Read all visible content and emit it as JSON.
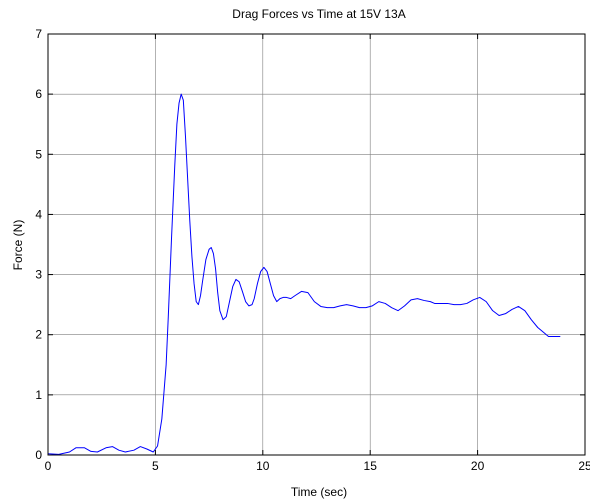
{
  "chart_data": {
    "type": "line",
    "title": "Drag Forces vs Time at 15V 13A",
    "xlabel": "Time (sec)",
    "ylabel": "Force (N)",
    "xlim": [
      0,
      25
    ],
    "ylim": [
      0,
      7
    ],
    "xticks": [
      0,
      5,
      10,
      15,
      20,
      25
    ],
    "yticks": [
      0,
      1,
      2,
      3,
      4,
      5,
      6,
      7
    ],
    "grid": true,
    "box": true,
    "colors": {
      "line": "#0000ff",
      "grid": "#7f7f7f",
      "axes": "#000000",
      "background": "#ffffff"
    },
    "series": [
      {
        "x": [
          0,
          0.5,
          1.0,
          1.3,
          1.7,
          2.0,
          2.3,
          2.7,
          3.0,
          3.3,
          3.6,
          4.0,
          4.3,
          4.6,
          4.9,
          5.1,
          5.3,
          5.5,
          5.6,
          5.75,
          5.9,
          6.0,
          6.1,
          6.2,
          6.3,
          6.4,
          6.5,
          6.6,
          6.7,
          6.8,
          6.9,
          7.0,
          7.1,
          7.2,
          7.35,
          7.5,
          7.6,
          7.7,
          7.8,
          7.9,
          8.0,
          8.15,
          8.3,
          8.45,
          8.6,
          8.75,
          8.9,
          9.05,
          9.2,
          9.35,
          9.5,
          9.6,
          9.75,
          9.9,
          10.05,
          10.2,
          10.35,
          10.5,
          10.65,
          10.8,
          10.95,
          11.1,
          11.3,
          11.5,
          11.8,
          12.1,
          12.4,
          12.7,
          13.0,
          13.3,
          13.6,
          13.9,
          14.2,
          14.5,
          14.8,
          15.1,
          15.4,
          15.7,
          16.0,
          16.3,
          16.6,
          16.9,
          17.2,
          17.5,
          17.8,
          18.0,
          18.3,
          18.6,
          18.9,
          19.2,
          19.5,
          19.8,
          20.1,
          20.4,
          20.7,
          21.0,
          21.3,
          21.6,
          21.9,
          22.2,
          22.5,
          22.8,
          23.1,
          23.3,
          23.5,
          23.7,
          23.85
        ],
        "y": [
          0.02,
          0.01,
          0.05,
          0.12,
          0.12,
          0.06,
          0.05,
          0.12,
          0.14,
          0.08,
          0.05,
          0.08,
          0.14,
          0.1,
          0.05,
          0.15,
          0.6,
          1.5,
          2.3,
          3.6,
          4.8,
          5.5,
          5.85,
          6.0,
          5.9,
          5.3,
          4.6,
          3.9,
          3.3,
          2.85,
          2.55,
          2.5,
          2.65,
          2.9,
          3.25,
          3.42,
          3.45,
          3.35,
          3.1,
          2.7,
          2.4,
          2.25,
          2.3,
          2.55,
          2.8,
          2.92,
          2.88,
          2.72,
          2.55,
          2.48,
          2.5,
          2.6,
          2.85,
          3.05,
          3.12,
          3.05,
          2.85,
          2.65,
          2.55,
          2.6,
          2.62,
          2.62,
          2.6,
          2.65,
          2.72,
          2.7,
          2.55,
          2.47,
          2.45,
          2.45,
          2.48,
          2.5,
          2.48,
          2.45,
          2.45,
          2.48,
          2.55,
          2.52,
          2.45,
          2.4,
          2.48,
          2.58,
          2.6,
          2.57,
          2.55,
          2.52,
          2.52,
          2.52,
          2.5,
          2.5,
          2.52,
          2.58,
          2.62,
          2.55,
          2.4,
          2.32,
          2.35,
          2.42,
          2.47,
          2.4,
          2.25,
          2.12,
          2.03,
          1.97,
          1.97,
          1.97,
          1.97
        ]
      }
    ]
  }
}
